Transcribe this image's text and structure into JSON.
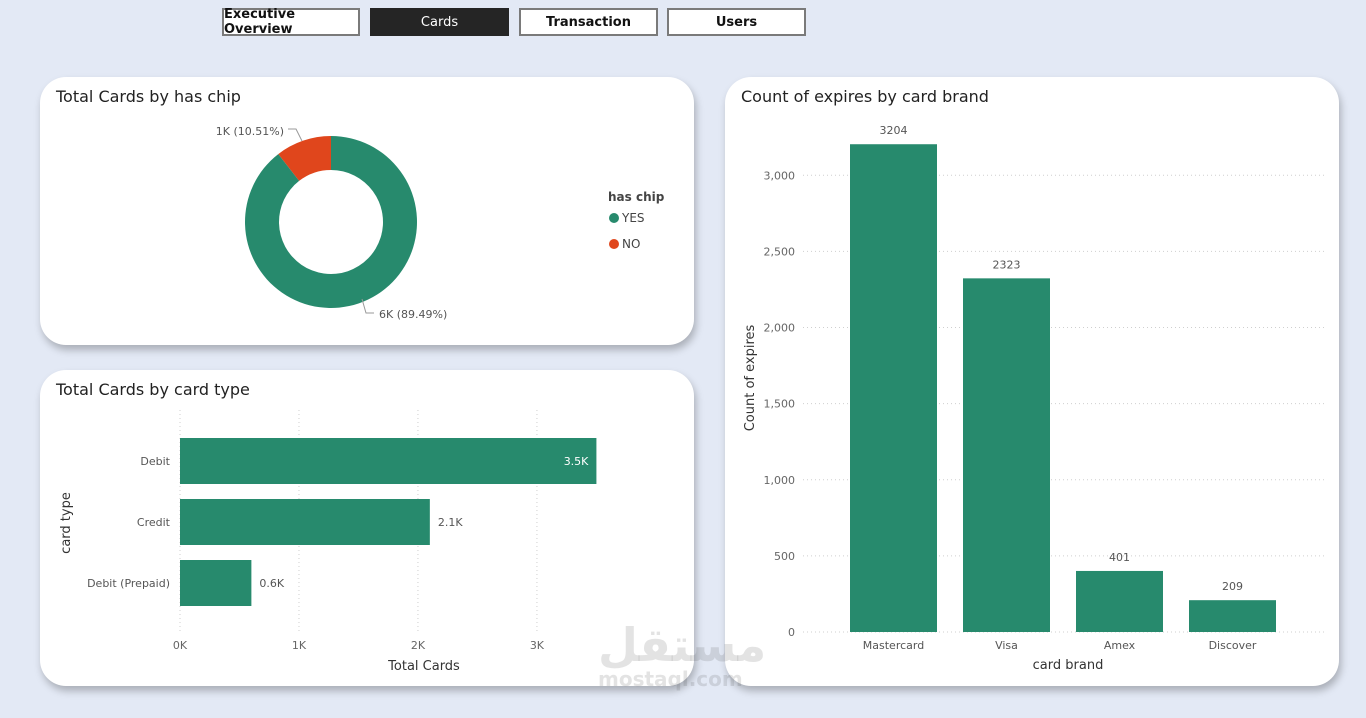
{
  "tabs": [
    {
      "label": "Executive Overview",
      "active": false
    },
    {
      "label": "Cards",
      "active": true
    },
    {
      "label": "Transaction",
      "active": false
    },
    {
      "label": "Users",
      "active": false
    }
  ],
  "colors": {
    "green": "#278a6d",
    "orange": "#e0461c",
    "background": "#e3e9f5"
  },
  "watermark": {
    "arabic": "مستقل",
    "latin": "mostaql.com"
  },
  "chart_data": [
    {
      "type": "pie",
      "variant": "donut",
      "title": "Total Cards by has chip",
      "legend_title": "has chip",
      "legend_position": "right",
      "slices": [
        {
          "name": "YES",
          "value": 89.49,
          "label": "6K (89.49%)",
          "color": "#278a6d"
        },
        {
          "name": "NO",
          "value": 10.51,
          "label": "1K (10.51%)",
          "color": "#e0461c"
        }
      ]
    },
    {
      "type": "bar",
      "orientation": "horizontal",
      "title": "Total Cards by card type",
      "categories": [
        "Debit",
        "Credit",
        "Debit (Prepaid)"
      ],
      "values": [
        3.5,
        2.1,
        0.6
      ],
      "data_labels": [
        "3.5K",
        "2.1K",
        "0.6K"
      ],
      "xlabel": "Total Cards",
      "ylabel": "card type",
      "xlim": [
        0,
        3.9
      ],
      "xticks": [
        0,
        1,
        2,
        3
      ],
      "xtick_labels": [
        "0K",
        "1K",
        "2K",
        "3K"
      ],
      "grid": true,
      "color": "#278a6d"
    },
    {
      "type": "bar",
      "title": "Count of expires by card brand",
      "categories": [
        "Mastercard",
        "Visa",
        "Amex",
        "Discover"
      ],
      "values": [
        3204,
        2323,
        401,
        209
      ],
      "data_labels": [
        "3204",
        "2323",
        "401",
        "209"
      ],
      "xlabel": "card brand",
      "ylabel": "Count of expires",
      "ylim": [
        0,
        3350
      ],
      "yticks": [
        0,
        500,
        1000,
        1500,
        2000,
        2500,
        3000
      ],
      "ytick_labels": [
        "0",
        "500",
        "1,000",
        "1,500",
        "2,000",
        "2,500",
        "3,000"
      ],
      "grid": true,
      "color": "#278a6d"
    }
  ]
}
